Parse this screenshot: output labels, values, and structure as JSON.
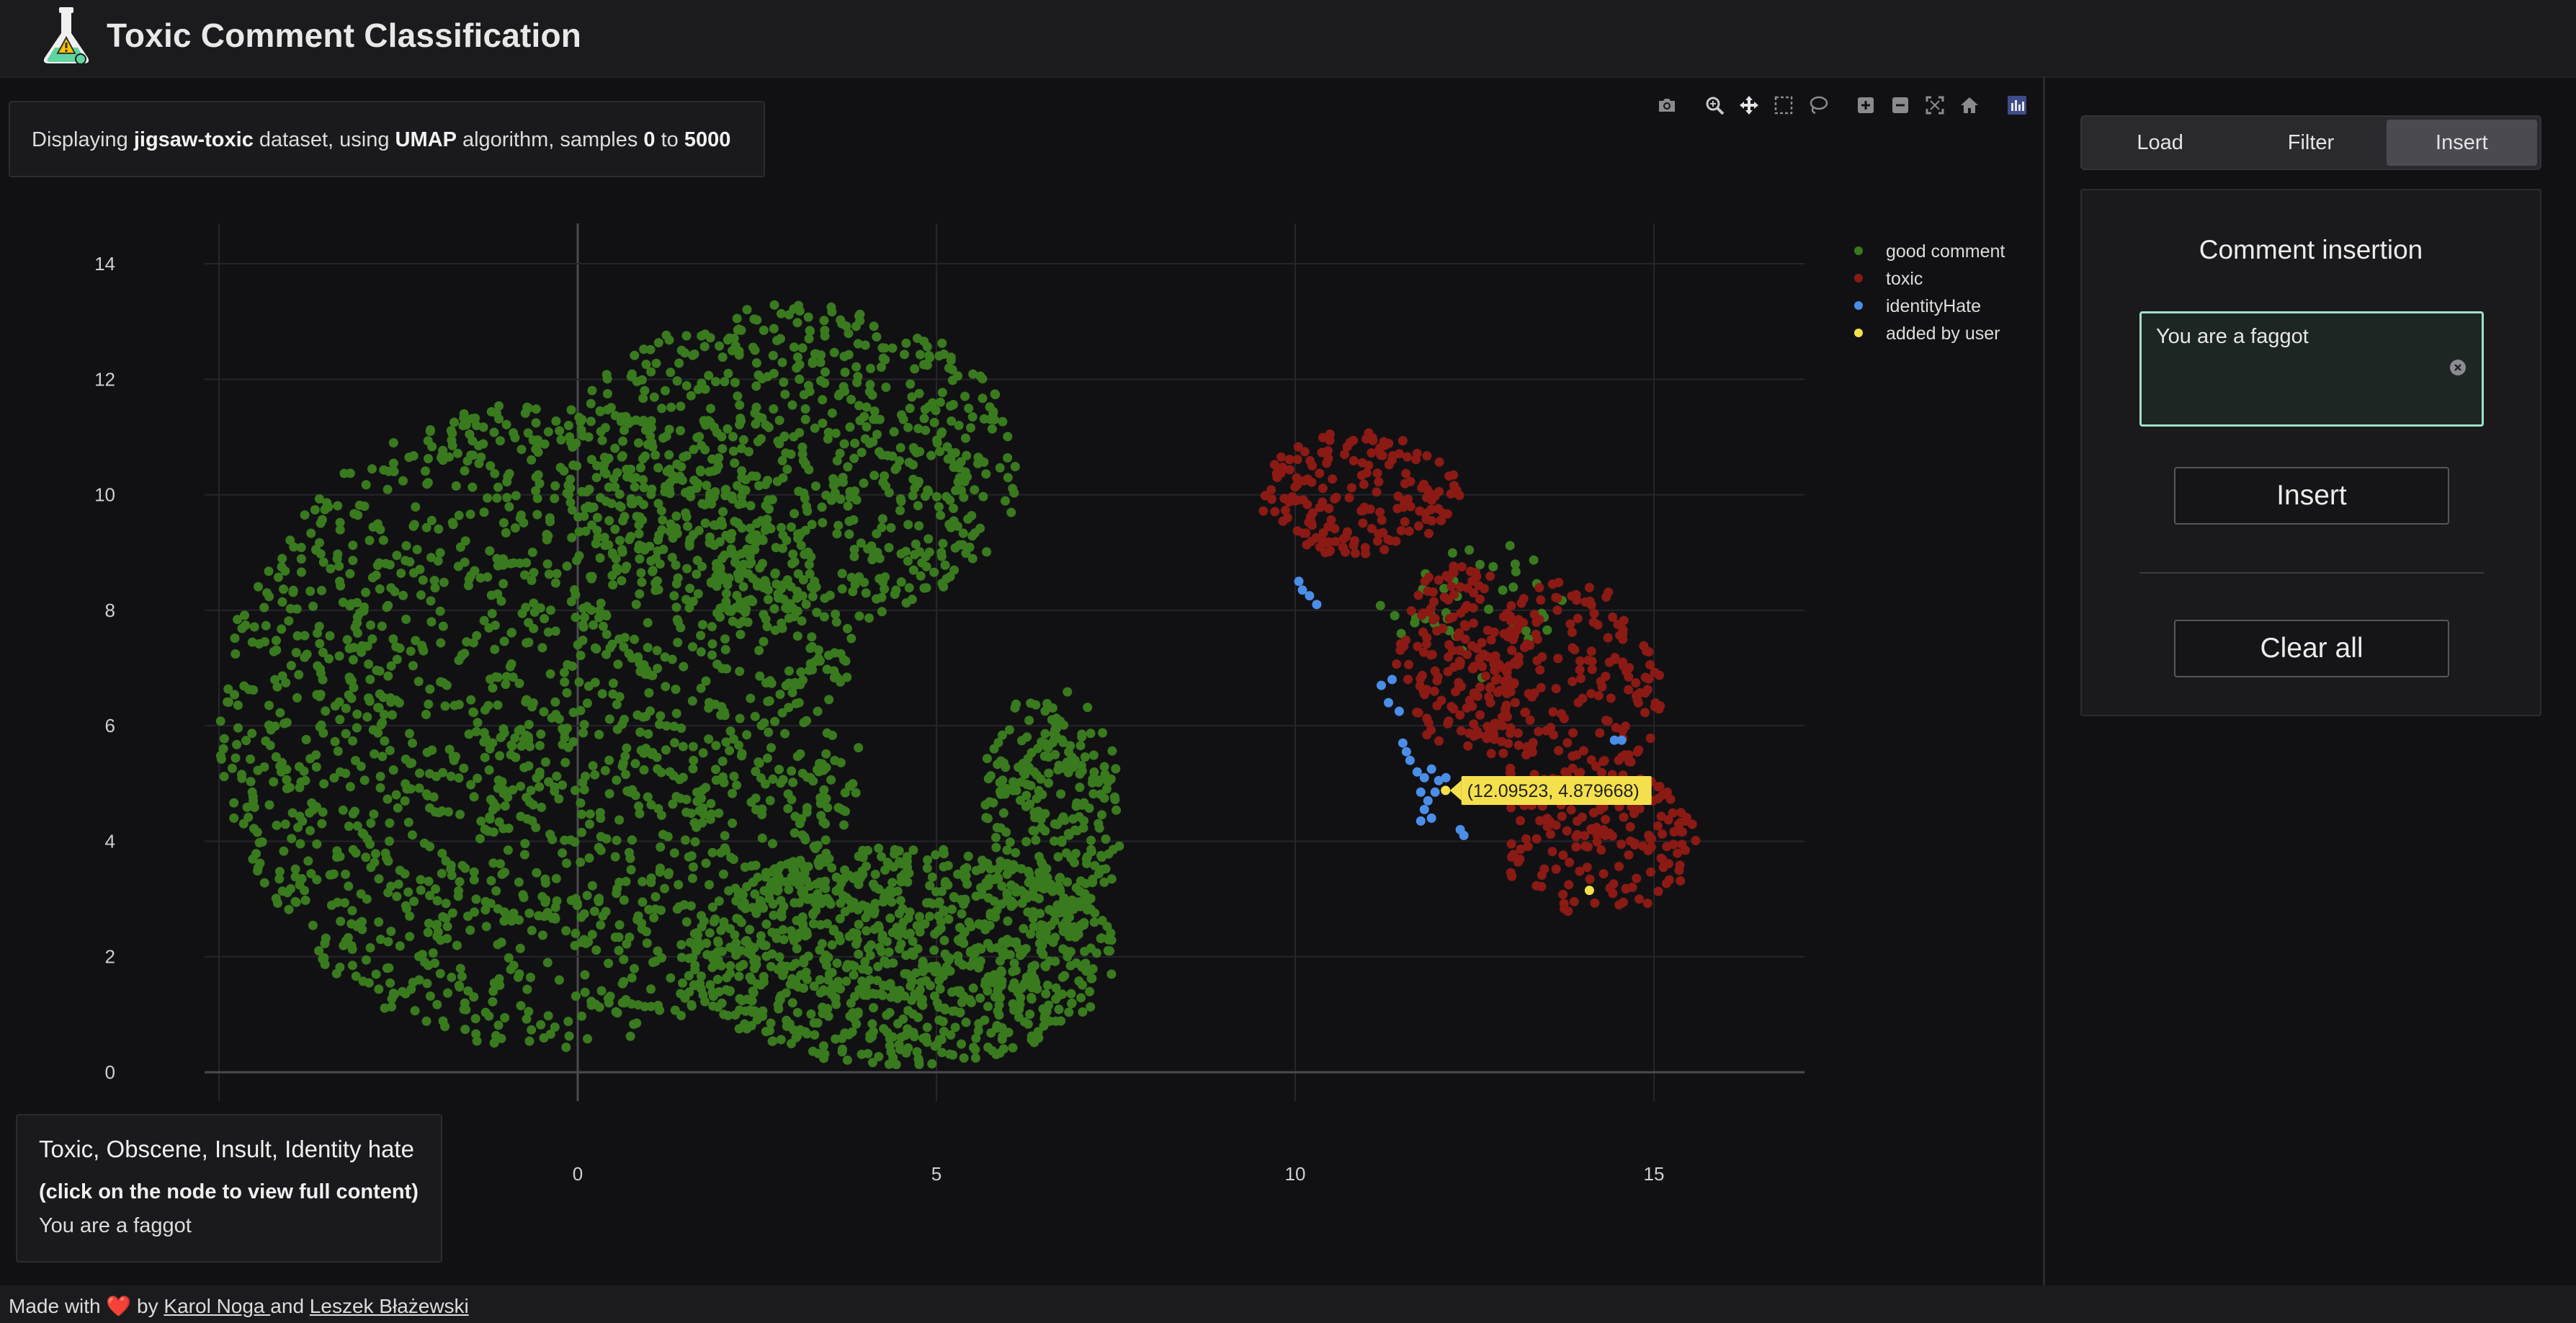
{
  "app": {
    "title": "Toxic Comment Classification"
  },
  "info": {
    "prefix": "Displaying ",
    "dataset": "jigsaw-toxic",
    "mid1": " dataset, using ",
    "algorithm": "UMAP",
    "mid2": " algorithm, samples ",
    "start": "0",
    "mid3": " to ",
    "end": "5000"
  },
  "modebar": {
    "icons": [
      "camera-icon",
      "zoom-icon",
      "pan-icon",
      "box-select-icon",
      "lasso-icon",
      "zoom-in-icon",
      "zoom-out-icon",
      "autoscale-icon",
      "reset-axes-icon",
      "plotly-logo-icon"
    ]
  },
  "chart_data": {
    "type": "scatter",
    "title": "",
    "xlabel": "",
    "ylabel": "",
    "xlim": [
      -5.2,
      17.1
    ],
    "ylim": [
      -0.5,
      14.7
    ],
    "x_ticks": [
      "0",
      "5",
      "10",
      "15"
    ],
    "y_ticks": [
      "0",
      "2",
      "4",
      "6",
      "8",
      "10",
      "12",
      "14"
    ],
    "grid": true,
    "legend_position": "top-right",
    "series": [
      {
        "name": "good comment",
        "color": "#3a7a1e",
        "regions": [
          {
            "cx": -0.5,
            "cy": 6.0,
            "rx": 4.5,
            "ry": 5.6,
            "n": 1700
          },
          {
            "cx": 3.0,
            "cy": 10.5,
            "rx": 3.2,
            "ry": 2.8,
            "n": 700
          },
          {
            "cx": 4.5,
            "cy": 2.0,
            "rx": 3.0,
            "ry": 1.9,
            "n": 900
          },
          {
            "cx": 6.6,
            "cy": 4.5,
            "rx": 1.0,
            "ry": 2.2,
            "n": 260
          },
          {
            "cx": 12.5,
            "cy": 8.0,
            "rx": 1.5,
            "ry": 1.2,
            "n": 40
          }
        ]
      },
      {
        "name": "toxic",
        "color": "#8b1a14",
        "regions": [
          {
            "cx": 10.9,
            "cy": 10.0,
            "rx": 1.4,
            "ry": 1.1,
            "n": 180
          },
          {
            "cx": 12.3,
            "cy": 7.2,
            "rx": 0.9,
            "ry": 1.6,
            "n": 160
          },
          {
            "cx": 13.8,
            "cy": 6.6,
            "rx": 1.3,
            "ry": 1.9,
            "n": 200
          },
          {
            "cx": 14.2,
            "cy": 4.0,
            "rx": 1.4,
            "ry": 1.3,
            "n": 170
          }
        ]
      },
      {
        "name": "identityHate",
        "color": "#4a8ee8",
        "points": [
          [
            10.05,
            8.5
          ],
          [
            10.1,
            8.35
          ],
          [
            10.2,
            8.25
          ],
          [
            10.3,
            8.1
          ],
          [
            11.2,
            6.7
          ],
          [
            11.35,
            6.8
          ],
          [
            11.3,
            6.4
          ],
          [
            11.45,
            6.25
          ],
          [
            11.5,
            5.7
          ],
          [
            11.55,
            5.55
          ],
          [
            11.6,
            5.4
          ],
          [
            11.7,
            5.2
          ],
          [
            11.8,
            5.1
          ],
          [
            11.9,
            5.25
          ],
          [
            12.0,
            5.05
          ],
          [
            11.75,
            4.85
          ],
          [
            11.85,
            4.7
          ],
          [
            11.95,
            4.85
          ],
          [
            11.8,
            4.55
          ],
          [
            11.9,
            4.4
          ],
          [
            11.75,
            4.35
          ],
          [
            12.3,
            4.2
          ],
          [
            12.35,
            4.1
          ],
          [
            14.45,
            5.75
          ],
          [
            14.55,
            5.75
          ],
          [
            12.1,
            5.1
          ]
        ]
      },
      {
        "name": "added by user",
        "color": "#f4e04d",
        "points": [
          [
            12.09523,
            4.879668
          ],
          [
            14.1,
            3.15
          ]
        ]
      }
    ],
    "annotation": {
      "text": "(12.09523, 4.879668)",
      "x": 12.09523,
      "y": 4.879668
    }
  },
  "hover": {
    "labels": "Toxic, Obscene, Insult, Identity hate",
    "hint": "(click on the node to view full content)",
    "text": "You are a faggot"
  },
  "sidebar": {
    "tabs": [
      {
        "label": "Load",
        "active": false
      },
      {
        "label": "Filter",
        "active": false
      },
      {
        "label": "Insert",
        "active": true
      }
    ],
    "panel_title": "Comment insertion",
    "input_value": "You are a faggot",
    "insert_label": "Insert",
    "clear_label": "Clear all"
  },
  "footer": {
    "prefix": "Made with ",
    "by": " by ",
    "author1": "Karol Noga ",
    "and": "and ",
    "author2": "Leszek Błażewski"
  }
}
